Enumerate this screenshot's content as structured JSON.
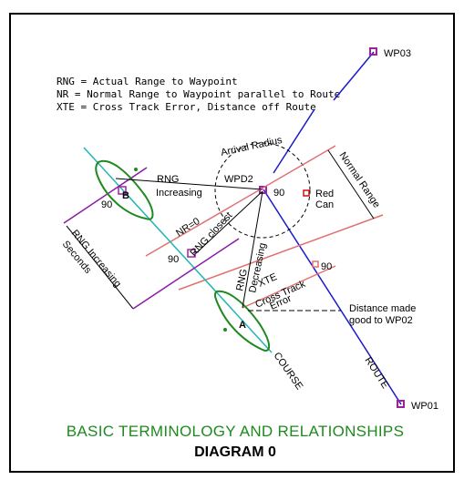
{
  "legend": {
    "line1": "RNG = Actual Range to Waypoint",
    "line2": "NR = Normal Range to Waypoint parallel to Route",
    "line3": "XTE = Cross Track Error, Distance off Route"
  },
  "waypoints": {
    "wp01": "WP01",
    "wp02": "WPD2",
    "wp03": "WP03"
  },
  "labels": {
    "arrival_radius": "Arrival Radius",
    "rng_increasing_top": "RNG",
    "rng_increasing_bottom": "Increasing",
    "angle_90": "90",
    "red_can_line1": "Red",
    "red_can_line2": "Can",
    "normal_range": "Normal Range",
    "nr_zero": "NR=0",
    "rng_closest": "RNG closest",
    "rng_decreasing_line1": "RNG",
    "rng_decreasing_line2": "Decreasing",
    "xte": "XTE",
    "cross_track_line1": "Cross Track",
    "cross_track_line2": "Error",
    "distance_made_good_line1": "Distance made",
    "distance_made_good_line2": "good to WP02",
    "rng_increasing_seconds_line1": "RNG Increasing",
    "rng_increasing_seconds_line2": "Seconds",
    "boat_a": "A",
    "boat_b": "B",
    "course": "COURSE",
    "route": "ROUTE"
  },
  "title": "BASIC TERMINOLOGY AND RELATIONSHIPS",
  "subtitle": "DIAGRAM 0",
  "colors": {
    "route": "#1a1acc",
    "course": "#1fb5b5",
    "normal_range": "#e07070",
    "seconds_line": "#8a1aa8",
    "boat": "#1e8a1e",
    "waypoint": "#a020a0",
    "red_can": "#d01010",
    "title": "#1e8a1e"
  }
}
